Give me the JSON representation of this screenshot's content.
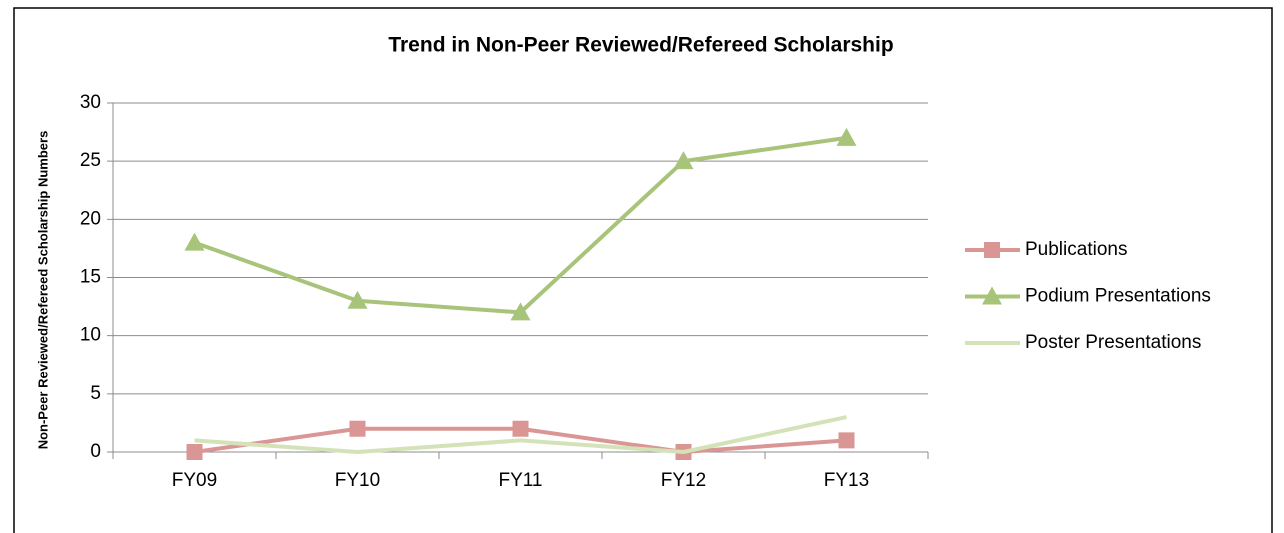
{
  "chart_data": {
    "type": "line",
    "title": "Trend in Non-Peer Reviewed/Refereed Scholarship",
    "y_label": "Non-Peer Reviewed/Refereed Scholarship Numbers",
    "categories": [
      "FY09",
      "FY10",
      "FY11",
      "FY12",
      "FY13"
    ],
    "series": [
      {
        "name": "Publications",
        "color": "#d99694",
        "marker": "square",
        "values": [
          0,
          2,
          2,
          0,
          1
        ]
      },
      {
        "name": "Podium Presentations",
        "color": "#a8c47a",
        "marker": "triangle",
        "values": [
          18,
          13,
          12,
          25,
          27
        ]
      },
      {
        "name": "Poster Presentations",
        "color": "#d4e2b8",
        "marker": "none",
        "values": [
          1,
          0,
          1,
          0,
          3
        ]
      }
    ],
    "ylim": [
      0,
      30
    ],
    "yticks": [
      0,
      5,
      10,
      15,
      20,
      25,
      30
    ],
    "grid": true,
    "legend": "right"
  }
}
